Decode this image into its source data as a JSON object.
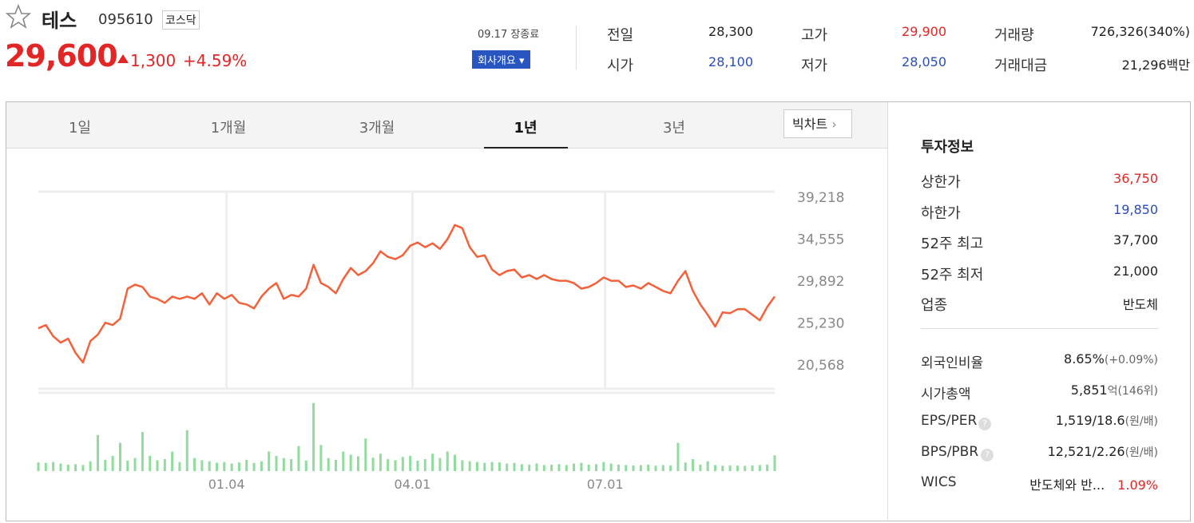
{
  "header": {
    "name": "테스",
    "code": "095610",
    "market": "코스닥",
    "price": "29,600",
    "change": "1,300",
    "change_rate": "+4.59%",
    "date_status": "09.17 장종료",
    "company_button": "회사개요"
  },
  "stats": [
    [
      "전일",
      "28,300"
    ],
    [
      "시가",
      "28,100"
    ],
    [
      "고가",
      "29,900"
    ],
    [
      "저가",
      "28,050"
    ],
    [
      "거래량",
      "726,326(340%)"
    ],
    [
      "거래대금",
      "21,296백만"
    ]
  ],
  "tabs": [
    "1일",
    "1개월",
    "3개월",
    "1년",
    "3년"
  ],
  "big_chart": "빅차트",
  "info": {
    "title": "투자정보",
    "rows": [
      [
        "상한가",
        "36,750"
      ],
      [
        "하한가",
        "19,850"
      ],
      [
        "52주 최고",
        "37,700"
      ],
      [
        "52주 최저",
        "21,000"
      ],
      [
        "업종",
        "반도체"
      ]
    ],
    "rows2": [
      [
        "외국인비율",
        "8.65%",
        "(+0.09%)"
      ],
      [
        "시가총액",
        "5,851",
        "억(146위)"
      ],
      [
        "EPS/PER",
        "1,519/18.6",
        "(원/배)"
      ],
      [
        "BPS/PBR",
        "12,521/2.26",
        "(원/배)"
      ],
      [
        "WICS",
        "반도체와 반...",
        "1.09%"
      ]
    ]
  },
  "chart_data": {
    "type": "line",
    "color": "#f4603a",
    "values": [
      24560,
      24920,
      23680,
      22970,
      23410,
      21820,
      20760,
      23150,
      23860,
      25180,
      24920,
      25620,
      28970,
      29410,
      29150,
      28090,
      27830,
      27390,
      28090,
      27830,
      28090,
      27830,
      28450,
      27210,
      28450,
      27830,
      28270,
      27390,
      27210,
      26770,
      28090,
      28970,
      29590,
      27830,
      28270,
      28090,
      28970,
      31620,
      29590,
      29150,
      28450,
      30030,
      31270,
      30480,
      30920,
      31800,
      33120,
      32500,
      32240,
      32680,
      33740,
      34100,
      33570,
      34010,
      33390,
      34450,
      36040,
      35690,
      33570,
      32500,
      32680,
      31090,
      30480,
      30920,
      31090,
      30210,
      30480,
      30030,
      30480,
      30030,
      29850,
      29850,
      29590,
      28970,
      29150,
      29590,
      30210,
      29850,
      29850,
      29150,
      29320,
      28970,
      29590,
      29150,
      28710,
      28450,
      29850,
      30920,
      28710,
      27210,
      26060,
      24740,
      26330,
      26240,
      26680,
      26680,
      26060,
      25450,
      26940,
      28090
    ],
    "xlim": [
      0,
      99
    ],
    "xticks": [
      {
        "value": 25.3,
        "label": "01.04"
      },
      {
        "value": 50.3,
        "label": "04.01"
      },
      {
        "value": 76.2,
        "label": "07.01"
      }
    ],
    "ylim": [
      17830,
      39750
    ],
    "yticks": [
      {
        "value": 20568,
        "label": "20,568"
      },
      {
        "value": 25230,
        "label": "25,230"
      },
      {
        "value": 29892,
        "label": "29,892"
      },
      {
        "value": 34555,
        "label": "34,555"
      },
      {
        "value": 39218,
        "label": "39,218"
      }
    ],
    "volume": {
      "color": "#8fdc9c",
      "ylim": [
        0,
        3600000
      ],
      "values": [
        400000,
        380000,
        420000,
        350000,
        300000,
        320000,
        280000,
        450000,
        1660000,
        520000,
        700000,
        1300000,
        480000,
        600000,
        1800000,
        700000,
        500000,
        550000,
        900000,
        420000,
        1880000,
        600000,
        500000,
        450000,
        380000,
        420000,
        350000,
        400000,
        520000,
        380000,
        450000,
        900000,
        700000,
        600000,
        550000,
        1150000,
        480000,
        3130000,
        1200000,
        600000,
        520000,
        900000,
        750000,
        680000,
        1500000,
        620000,
        800000,
        550000,
        500000,
        650000,
        700000,
        480000,
        550000,
        800000,
        600000,
        900000,
        750000,
        500000,
        450000,
        420000,
        380000,
        420000,
        400000,
        350000,
        380000,
        320000,
        300000,
        350000,
        280000,
        300000,
        320000,
        280000,
        350000,
        380000,
        300000,
        320000,
        420000,
        350000,
        300000,
        280000,
        260000,
        280000,
        300000,
        250000,
        280000,
        260000,
        1300000,
        400000,
        550000,
        300000,
        450000,
        280000,
        250000,
        260000,
        250000,
        240000,
        260000,
        280000,
        300000,
        726326
      ]
    }
  }
}
